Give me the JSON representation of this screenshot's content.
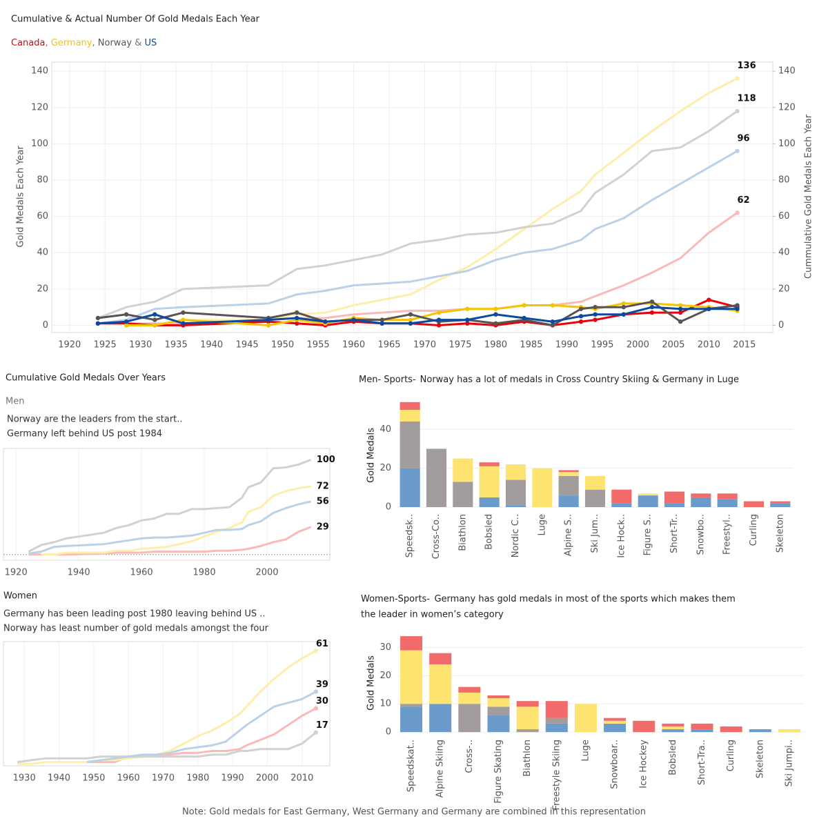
{
  "chart_data": [
    {
      "type": "line",
      "title": "Cumulative & Actual Number Of Gold Medals Each Year",
      "legend_separators": [
        ", ",
        ", ",
        " & "
      ],
      "ylabel": "Gold Medals Each Year",
      "y2label": "Cummulative Gold Medals Each Year",
      "grid": true,
      "x": [
        1924,
        1928,
        1932,
        1936,
        1948,
        1952,
        1956,
        1960,
        1964,
        1968,
        1972,
        1976,
        1980,
        1984,
        1988,
        1992,
        1994,
        1998,
        2002,
        2006,
        2010,
        2014
      ],
      "xlim": [
        1917.5,
        2019
      ],
      "xticks": [
        1920,
        1925,
        1930,
        1935,
        1940,
        1945,
        1950,
        1955,
        1960,
        1965,
        1970,
        1975,
        1980,
        1985,
        1990,
        1995,
        2000,
        2005,
        2010,
        2015
      ],
      "ylim": [
        -4,
        145
      ],
      "yticks": [
        0,
        20,
        40,
        60,
        80,
        100,
        120,
        140
      ],
      "y2lim": [
        -4,
        145
      ],
      "y2ticks": [
        0,
        20,
        40,
        60,
        80,
        100,
        120,
        140
      ],
      "series": [
        {
          "name": "Canada",
          "color": "#e8000b",
          "markers": "all",
          "values": [
            1,
            1,
            0,
            0,
            2,
            1,
            0,
            2,
            1,
            1,
            0,
            1,
            0,
            2,
            0,
            2,
            3,
            6,
            7,
            7,
            14,
            10
          ]
        },
        {
          "name": "Germany",
          "color": "#f5c400",
          "markers": "all",
          "values": [
            null,
            0,
            0,
            3,
            0,
            3,
            1,
            4,
            3,
            3,
            7,
            9,
            9,
            11,
            11,
            10,
            9,
            12,
            12,
            11,
            10,
            8
          ]
        },
        {
          "name": "Norway",
          "color": "#595454",
          "markers": "all",
          "values": [
            4,
            6,
            3,
            7,
            4,
            7,
            2,
            3,
            3,
            6,
            2,
            3,
            1,
            3,
            0,
            9,
            10,
            10,
            13,
            2,
            9,
            11
          ]
        },
        {
          "name": "US",
          "color": "#0b4a9e",
          "markers": "all",
          "values": [
            1,
            2,
            6,
            1,
            3,
            4,
            2,
            3,
            1,
            1,
            3,
            3,
            6,
            4,
            2,
            5,
            6,
            6,
            10,
            9,
            9,
            9
          ]
        },
        {
          "color": "#f9b9b9",
          "axis": "y2",
          "markers": "last",
          "end_label": true,
          "values": [
            1,
            1,
            1,
            1,
            3,
            4,
            4,
            6,
            7,
            8,
            8,
            9,
            9,
            11,
            11,
            13,
            16,
            22,
            29,
            37,
            51,
            62
          ]
        },
        {
          "color": "#fdeeaa",
          "axis": "y2",
          "markers": "last",
          "end_label": true,
          "values": [
            null,
            0,
            0,
            3,
            3,
            6,
            7,
            11,
            14,
            17,
            25,
            32,
            42,
            53,
            64,
            74,
            83,
            95,
            107,
            118,
            128,
            136
          ]
        },
        {
          "color": "#d3d0d0",
          "axis": "y2",
          "markers": "last",
          "end_label": true,
          "values": [
            4,
            10,
            13,
            20,
            22,
            31,
            33,
            36,
            39,
            45,
            47,
            50,
            51,
            54,
            56,
            63,
            73,
            83,
            96,
            98,
            107,
            118
          ]
        },
        {
          "color": "#bad1e7",
          "axis": "y2",
          "markers": "last",
          "end_label": true,
          "values": [
            1,
            3,
            9,
            10,
            12,
            17,
            19,
            22,
            23,
            24,
            27,
            30,
            36,
            40,
            42,
            47,
            53,
            59,
            69,
            78,
            87,
            96
          ]
        }
      ]
    },
    {
      "type": "line",
      "heading": "Cumulative Gold Medals Over Years",
      "title": "Men",
      "notes": [
        "Norway are the leaders from the start..",
        "Germany left behind US post 1984"
      ],
      "grid": true,
      "zero_line": true,
      "x": [
        1924,
        1928,
        1932,
        1936,
        1948,
        1952,
        1956,
        1960,
        1964,
        1968,
        1972,
        1976,
        1980,
        1984,
        1988,
        1992,
        1994,
        1998,
        2002,
        2006,
        2010,
        2014
      ],
      "xlim": [
        1916,
        2020
      ],
      "xticks": [
        1920,
        1940,
        1960,
        1980,
        2000
      ],
      "ylim": [
        -6,
        112
      ],
      "series": [
        {
          "color": "#f9b9b9",
          "end_label": true,
          "values": [
            0,
            0,
            0,
            0,
            1,
            2,
            2,
            2,
            3,
            3,
            3,
            3,
            3,
            4,
            4,
            5,
            6,
            9,
            13,
            16,
            24,
            29
          ]
        },
        {
          "color": "#fdeeaa",
          "end_label": true,
          "values": [
            null,
            0,
            0,
            2,
            2,
            4,
            4,
            6,
            7,
            8,
            11,
            14,
            19,
            24,
            28,
            34,
            45,
            50,
            62,
            67,
            70,
            72
          ]
        },
        {
          "color": "#d3d0d0",
          "end_label": true,
          "values": [
            3,
            10,
            13,
            17,
            23,
            28,
            31,
            36,
            38,
            43,
            43,
            48,
            48,
            49,
            50,
            60,
            71,
            76,
            91,
            92,
            95,
            100
          ]
        },
        {
          "color": "#bad1e7",
          "end_label": true,
          "values": [
            1,
            3,
            8,
            9,
            11,
            13,
            15,
            17,
            18,
            18,
            19,
            20,
            23,
            26,
            26,
            27,
            31,
            35,
            44,
            49,
            53,
            56
          ]
        }
      ]
    },
    {
      "type": "line",
      "title": "Women",
      "notes": [
        "Germany has been leading post 1980 leaving behind US ..",
        "Norway has least number of gold medals amongst the four"
      ],
      "grid": true,
      "x": [
        1924,
        1928,
        1932,
        1936,
        1948,
        1952,
        1956,
        1960,
        1964,
        1968,
        1972,
        1976,
        1980,
        1984,
        1988,
        1992,
        1994,
        1998,
        2002,
        2006,
        2010,
        2014
      ],
      "xlim": [
        1924,
        2018
      ],
      "xticks": [
        1930,
        1940,
        1950,
        1960,
        1970,
        1980,
        1990,
        2000,
        2010
      ],
      "ylim": [
        -1,
        66
      ],
      "series": [
        {
          "color": "#f9b9b9",
          "markers": "last",
          "end_label": true,
          "values": [
            null,
            null,
            null,
            null,
            1,
            1,
            1,
            4,
            4,
            5,
            5,
            6,
            6,
            7,
            7,
            8,
            10,
            13,
            16,
            21,
            26,
            30
          ]
        },
        {
          "color": "#fdeeaa",
          "markers": "last",
          "end_label": true,
          "values": [
            null,
            0,
            0,
            1,
            1,
            2,
            2,
            3,
            4,
            5,
            7,
            11,
            15,
            18,
            22,
            27,
            31,
            39,
            46,
            52,
            57,
            61
          ]
        },
        {
          "color": "#d3d0d0",
          "markers": "last",
          "end_label": true,
          "values": [
            null,
            1,
            2,
            3,
            3,
            4,
            4,
            4,
            4,
            4,
            4,
            4,
            4,
            5,
            5,
            7,
            7,
            8,
            8,
            8,
            11,
            17
          ]
        },
        {
          "color": "#bad1e7",
          "markers": "last",
          "end_label": true,
          "values": [
            null,
            null,
            null,
            null,
            1,
            2,
            3,
            4,
            5,
            5,
            6,
            8,
            9,
            10,
            12,
            18,
            21,
            26,
            31,
            33,
            35,
            39
          ]
        }
      ]
    },
    {
      "type": "bar",
      "title": "Men- Sports-",
      "annotation": [
        "Norway has a lot of medals in Cross Country Skiing & Germany in Luge"
      ],
      "ylabel": "Gold Medals",
      "stacked": true,
      "categories": [
        "Speedsk..",
        "Cross-Co..",
        "Biathlon",
        "Bobsled",
        "Nordic C..",
        "Luge",
        "Alpine S..",
        "Ski Jum..",
        "Ice Hock..",
        "Figure S..",
        "Short-Tr..",
        "Snowbo..",
        "Freestyl..",
        "Curling",
        "Skeleton"
      ],
      "ylim": [
        -0.7,
        55
      ],
      "yticks": [
        0,
        20,
        40
      ],
      "series": [
        {
          "color": "#6b9bcb",
          "values": [
            20,
            0,
            0,
            5,
            1,
            0,
            6,
            0,
            2,
            6,
            2,
            5,
            4,
            0,
            2
          ]
        },
        {
          "color": "#a29c9c",
          "values": [
            24,
            30,
            13,
            0,
            13,
            0,
            10,
            9,
            0,
            0,
            0,
            0,
            0,
            0,
            0
          ]
        },
        {
          "color": "#fde36f",
          "values": [
            6,
            0,
            12,
            16,
            8,
            20,
            2,
            7,
            0,
            1,
            0,
            0,
            0,
            0,
            0
          ]
        },
        {
          "color": "#f26b6b",
          "values": [
            4,
            0,
            0,
            2,
            0,
            0,
            1,
            0,
            7,
            0,
            6,
            2,
            3,
            3,
            1
          ]
        }
      ]
    },
    {
      "type": "bar",
      "title": "Women-Sports-",
      "annotation": [
        "Germany has gold medals in most of the sports which makes them",
        "the leader in women’s category"
      ],
      "ylabel": "Gold Medals",
      "stacked": true,
      "categories": [
        "Speedskat..",
        "Alpine Skiing",
        "Cross-..",
        "Figure Skating",
        "Biathlon",
        "Freestyle Skiing",
        "Luge",
        "Snowboar..",
        "Ice Hockey",
        "Bobsled",
        "Short-Tra..",
        "Curling",
        "Skeleton",
        "Ski Jumpi.."
      ],
      "ylim": [
        -0.7,
        35
      ],
      "yticks": [
        0,
        10,
        20,
        30
      ],
      "series": [
        {
          "color": "#6b9bcb",
          "values": [
            9,
            10,
            0,
            6,
            0,
            3,
            0,
            3,
            0,
            1,
            1,
            0,
            1,
            0
          ]
        },
        {
          "color": "#a29c9c",
          "values": [
            1,
            0,
            10,
            3,
            1,
            2,
            0,
            0,
            0,
            0,
            0,
            0,
            0,
            0
          ]
        },
        {
          "color": "#fde36f",
          "values": [
            19,
            14,
            4,
            3,
            8,
            0,
            10,
            1,
            0,
            1,
            0,
            0,
            0,
            1
          ]
        },
        {
          "color": "#f26b6b",
          "values": [
            5,
            4,
            2,
            1,
            2,
            6,
            0,
            1,
            4,
            1,
            2,
            2,
            0,
            0
          ]
        }
      ]
    }
  ],
  "note": "Note: Gold medals for East Germany, West Germany and Germany are combined in this representation"
}
